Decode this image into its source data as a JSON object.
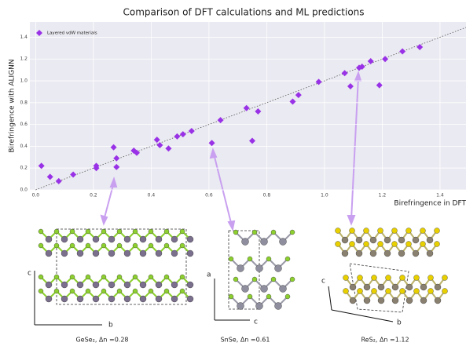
{
  "chart_data": {
    "type": "scatter",
    "title": "Comparison of DFT calculations and ML predictions",
    "xlabel": "Birefringence in DFT",
    "ylabel": "Birefringence with ALIGNN",
    "x": [
      0.02,
      0.05,
      0.08,
      0.13,
      0.21,
      0.21,
      0.27,
      0.28,
      0.28,
      0.34,
      0.35,
      0.42,
      0.43,
      0.46,
      0.49,
      0.51,
      0.54,
      0.61,
      0.64,
      0.73,
      0.75,
      0.77,
      0.89,
      0.91,
      0.98,
      1.07,
      1.09,
      1.12,
      1.13,
      1.16,
      1.19,
      1.21,
      1.27,
      1.33
    ],
    "series": [
      {
        "name": "Layered vdW materials",
        "color": "#9932e6",
        "values": [
          0.22,
          0.12,
          0.08,
          0.14,
          0.22,
          0.2,
          0.39,
          0.29,
          0.21,
          0.36,
          0.34,
          0.46,
          0.41,
          0.38,
          0.49,
          0.51,
          0.54,
          0.43,
          0.64,
          0.75,
          0.45,
          0.72,
          0.81,
          0.87,
          0.99,
          1.07,
          0.95,
          1.12,
          1.13,
          1.18,
          0.96,
          1.2,
          1.27,
          1.31
        ]
      }
    ],
    "xlim": [
      -0.02,
      1.49
    ],
    "ylim": [
      0,
      1.54
    ],
    "xticks": [
      {
        "value": 0,
        "label": "0.0"
      },
      {
        "value": 0.2,
        "label": "0.2"
      },
      {
        "value": 0.4,
        "label": "0.4"
      },
      {
        "value": 0.6,
        "label": "0.6"
      },
      {
        "value": 0.8,
        "label": "0.8"
      },
      {
        "value": 1,
        "label": "1.0"
      },
      {
        "value": 1.2,
        "label": "1.2"
      },
      {
        "value": 1.4,
        "label": "1.4"
      }
    ],
    "yticks": [
      {
        "value": 0,
        "label": "0.0"
      },
      {
        "value": 0.2,
        "label": "0.2"
      },
      {
        "value": 0.4,
        "label": "0.4"
      },
      {
        "value": 0.6,
        "label": "0.6"
      },
      {
        "value": 0.8,
        "label": "0.8"
      },
      {
        "value": 1,
        "label": "1.0"
      },
      {
        "value": 1.2,
        "label": "1.2"
      },
      {
        "value": 1.4,
        "label": "1.4"
      }
    ],
    "grid": true,
    "legend": "upper left",
    "structures": [
      {
        "label": "GeSe₂, Δn =0.28",
        "axes": [
          "c",
          "b"
        ]
      },
      {
        "label": "SnSe, Δn =0.61",
        "axes": [
          "a",
          "c"
        ]
      },
      {
        "label": "ReS₂, Δn =1.12",
        "axes": [
          "c",
          "b"
        ]
      }
    ]
  }
}
